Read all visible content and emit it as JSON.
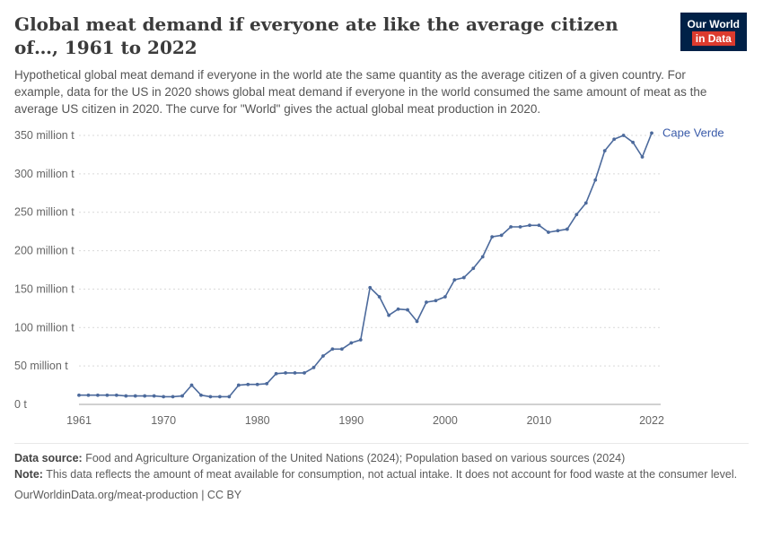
{
  "header": {
    "title": "Global meat demand if everyone ate like the average citizen of…, 1961 to 2022",
    "logo": {
      "line1": "Our World",
      "line2": "in Data",
      "bg": "#002147",
      "accent": "#dc3b2e"
    }
  },
  "subtitle": {
    "text": "Hypothetical global meat demand if everyone in the world ate the same quantity as the average citizen of a given country. For example, data for the US in 2020 shows global meat demand if everyone in the world consumed the same amount of meat as the average US citizen in 2020. The curve for \"World\" gives the actual global meat production in 2020."
  },
  "chart_data": {
    "type": "line",
    "title": "",
    "xlabel": "",
    "ylabel": "",
    "xlim": [
      1961,
      2022
    ],
    "ylim": [
      0,
      350
    ],
    "grid": "horizontal-dotted",
    "legend_position": "end-of-line-label",
    "line_color": "#4c6a9c",
    "label_color": "#3a5ba9",
    "grid_color": "#d9d9d9",
    "zero_line_color": "#a3a3a3",
    "tick_color": "#666666",
    "x": [
      1961,
      1962,
      1963,
      1964,
      1965,
      1966,
      1967,
      1968,
      1969,
      1970,
      1971,
      1972,
      1973,
      1974,
      1975,
      1976,
      1977,
      1978,
      1979,
      1980,
      1981,
      1982,
      1983,
      1984,
      1985,
      1986,
      1987,
      1988,
      1989,
      1990,
      1991,
      1992,
      1993,
      1994,
      1995,
      1996,
      1997,
      1998,
      1999,
      2000,
      2001,
      2002,
      2003,
      2004,
      2005,
      2006,
      2007,
      2008,
      2009,
      2010,
      2011,
      2012,
      2013,
      2014,
      2015,
      2016,
      2017,
      2018,
      2019,
      2020,
      2021,
      2022
    ],
    "series": [
      {
        "name": "Cape Verde",
        "unit": "million t",
        "values": [
          12,
          12,
          12,
          12,
          12,
          11,
          11,
          11,
          11,
          10,
          10,
          11,
          25,
          12,
          10,
          10,
          10,
          25,
          26,
          26,
          27,
          40,
          41,
          41,
          41,
          48,
          63,
          72,
          72,
          80,
          84,
          152,
          140,
          116,
          124,
          123,
          108,
          133,
          135,
          140,
          162,
          165,
          177,
          192,
          218,
          220,
          231,
          231,
          233,
          233,
          224,
          226,
          228,
          247,
          262,
          292,
          330,
          345,
          350,
          341,
          322,
          353
        ]
      }
    ],
    "y_ticks": [
      {
        "v": 0,
        "label": "0 t"
      },
      {
        "v": 50,
        "label": "50 million t"
      },
      {
        "v": 100,
        "label": "100 million t"
      },
      {
        "v": 150,
        "label": "150 million t"
      },
      {
        "v": 200,
        "label": "200 million t"
      },
      {
        "v": 250,
        "label": "250 million t"
      },
      {
        "v": 300,
        "label": "300 million t"
      },
      {
        "v": 350,
        "label": "350 million t"
      }
    ],
    "x_ticks": [
      {
        "v": 1961,
        "label": "1961"
      },
      {
        "v": 1970,
        "label": "1970"
      },
      {
        "v": 1980,
        "label": "1980"
      },
      {
        "v": 1990,
        "label": "1990"
      },
      {
        "v": 2000,
        "label": "2000"
      },
      {
        "v": 2010,
        "label": "2010"
      },
      {
        "v": 2022,
        "label": "2022"
      }
    ]
  },
  "footer": {
    "source_label": "Data source:",
    "source_text": " Food and Agriculture Organization of the United Nations (2024); Population based on various sources (2024)",
    "note_label": "Note:",
    "note_text": " This data reflects the amount of meat available for consumption, not actual intake. It does not account for food waste at the consumer level.",
    "license": "OurWorldinData.org/meat-production | CC BY"
  }
}
